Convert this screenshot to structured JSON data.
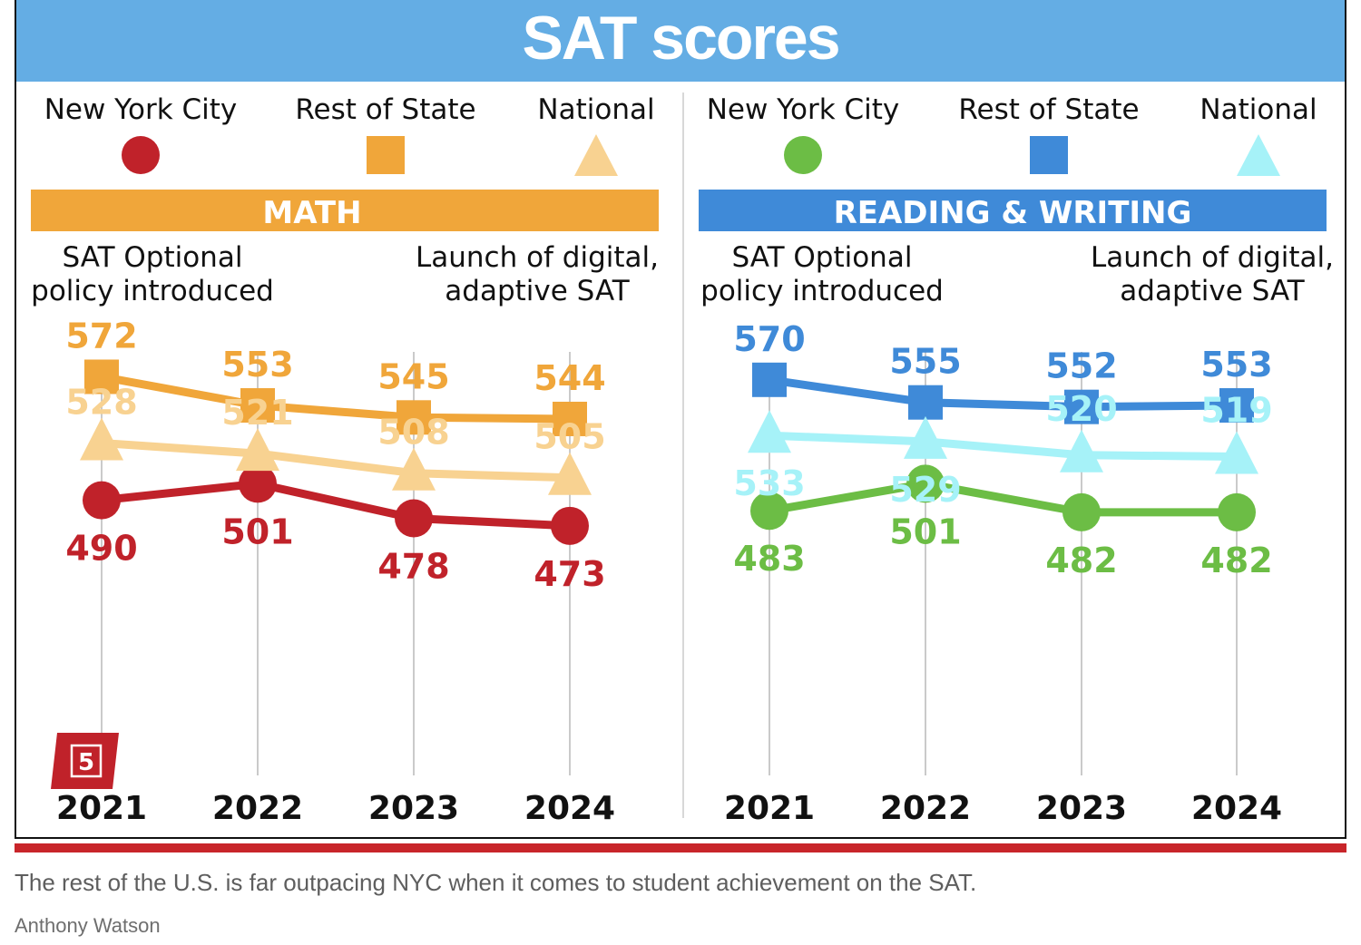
{
  "title": "SAT scores",
  "caption": "The rest of the U.S. is far outpacing NYC when it comes to student achievement on the SAT.",
  "credit": "Anthony Watson",
  "badge": "5",
  "annotations": {
    "policy_line1": "SAT Optional",
    "policy_line2": "policy introduced",
    "launch_line1": "Launch of digital,",
    "launch_line2": "adaptive SAT"
  },
  "chart_data": [
    {
      "type": "line",
      "title": "MATH",
      "categories": [
        "2021",
        "2022",
        "2023",
        "2024"
      ],
      "series": [
        {
          "name": "New York City",
          "values": [
            490,
            501,
            478,
            473
          ],
          "color": "#c0222a",
          "marker": "circle",
          "label_pos": "below"
        },
        {
          "name": "Rest of State",
          "values": [
            572,
            553,
            545,
            544
          ],
          "color": "#f0a63a",
          "marker": "square",
          "label_pos": "above"
        },
        {
          "name": "National",
          "values": [
            528,
            521,
            508,
            505
          ],
          "color": "#f8d291",
          "marker": "triangle",
          "label_pos": "above"
        }
      ],
      "band_color": "#f0a63a"
    },
    {
      "type": "line",
      "title": "READING & WRITING",
      "categories": [
        "2021",
        "2022",
        "2023",
        "2024"
      ],
      "series": [
        {
          "name": "New York City",
          "values": [
            483,
            501,
            482,
            482
          ],
          "color": "#6cbd45",
          "marker": "circle",
          "label_pos": "below"
        },
        {
          "name": "Rest of State",
          "values": [
            570,
            555,
            552,
            553
          ],
          "color": "#3f8ad8",
          "marker": "square",
          "label_pos": "above"
        },
        {
          "name": "National",
          "values": [
            533,
            529,
            520,
            519
          ],
          "color": "#a6f2f8",
          "marker": "triangle",
          "label_pos": "below_first_above_rest"
        }
      ],
      "band_color": "#3f8ad8"
    }
  ]
}
